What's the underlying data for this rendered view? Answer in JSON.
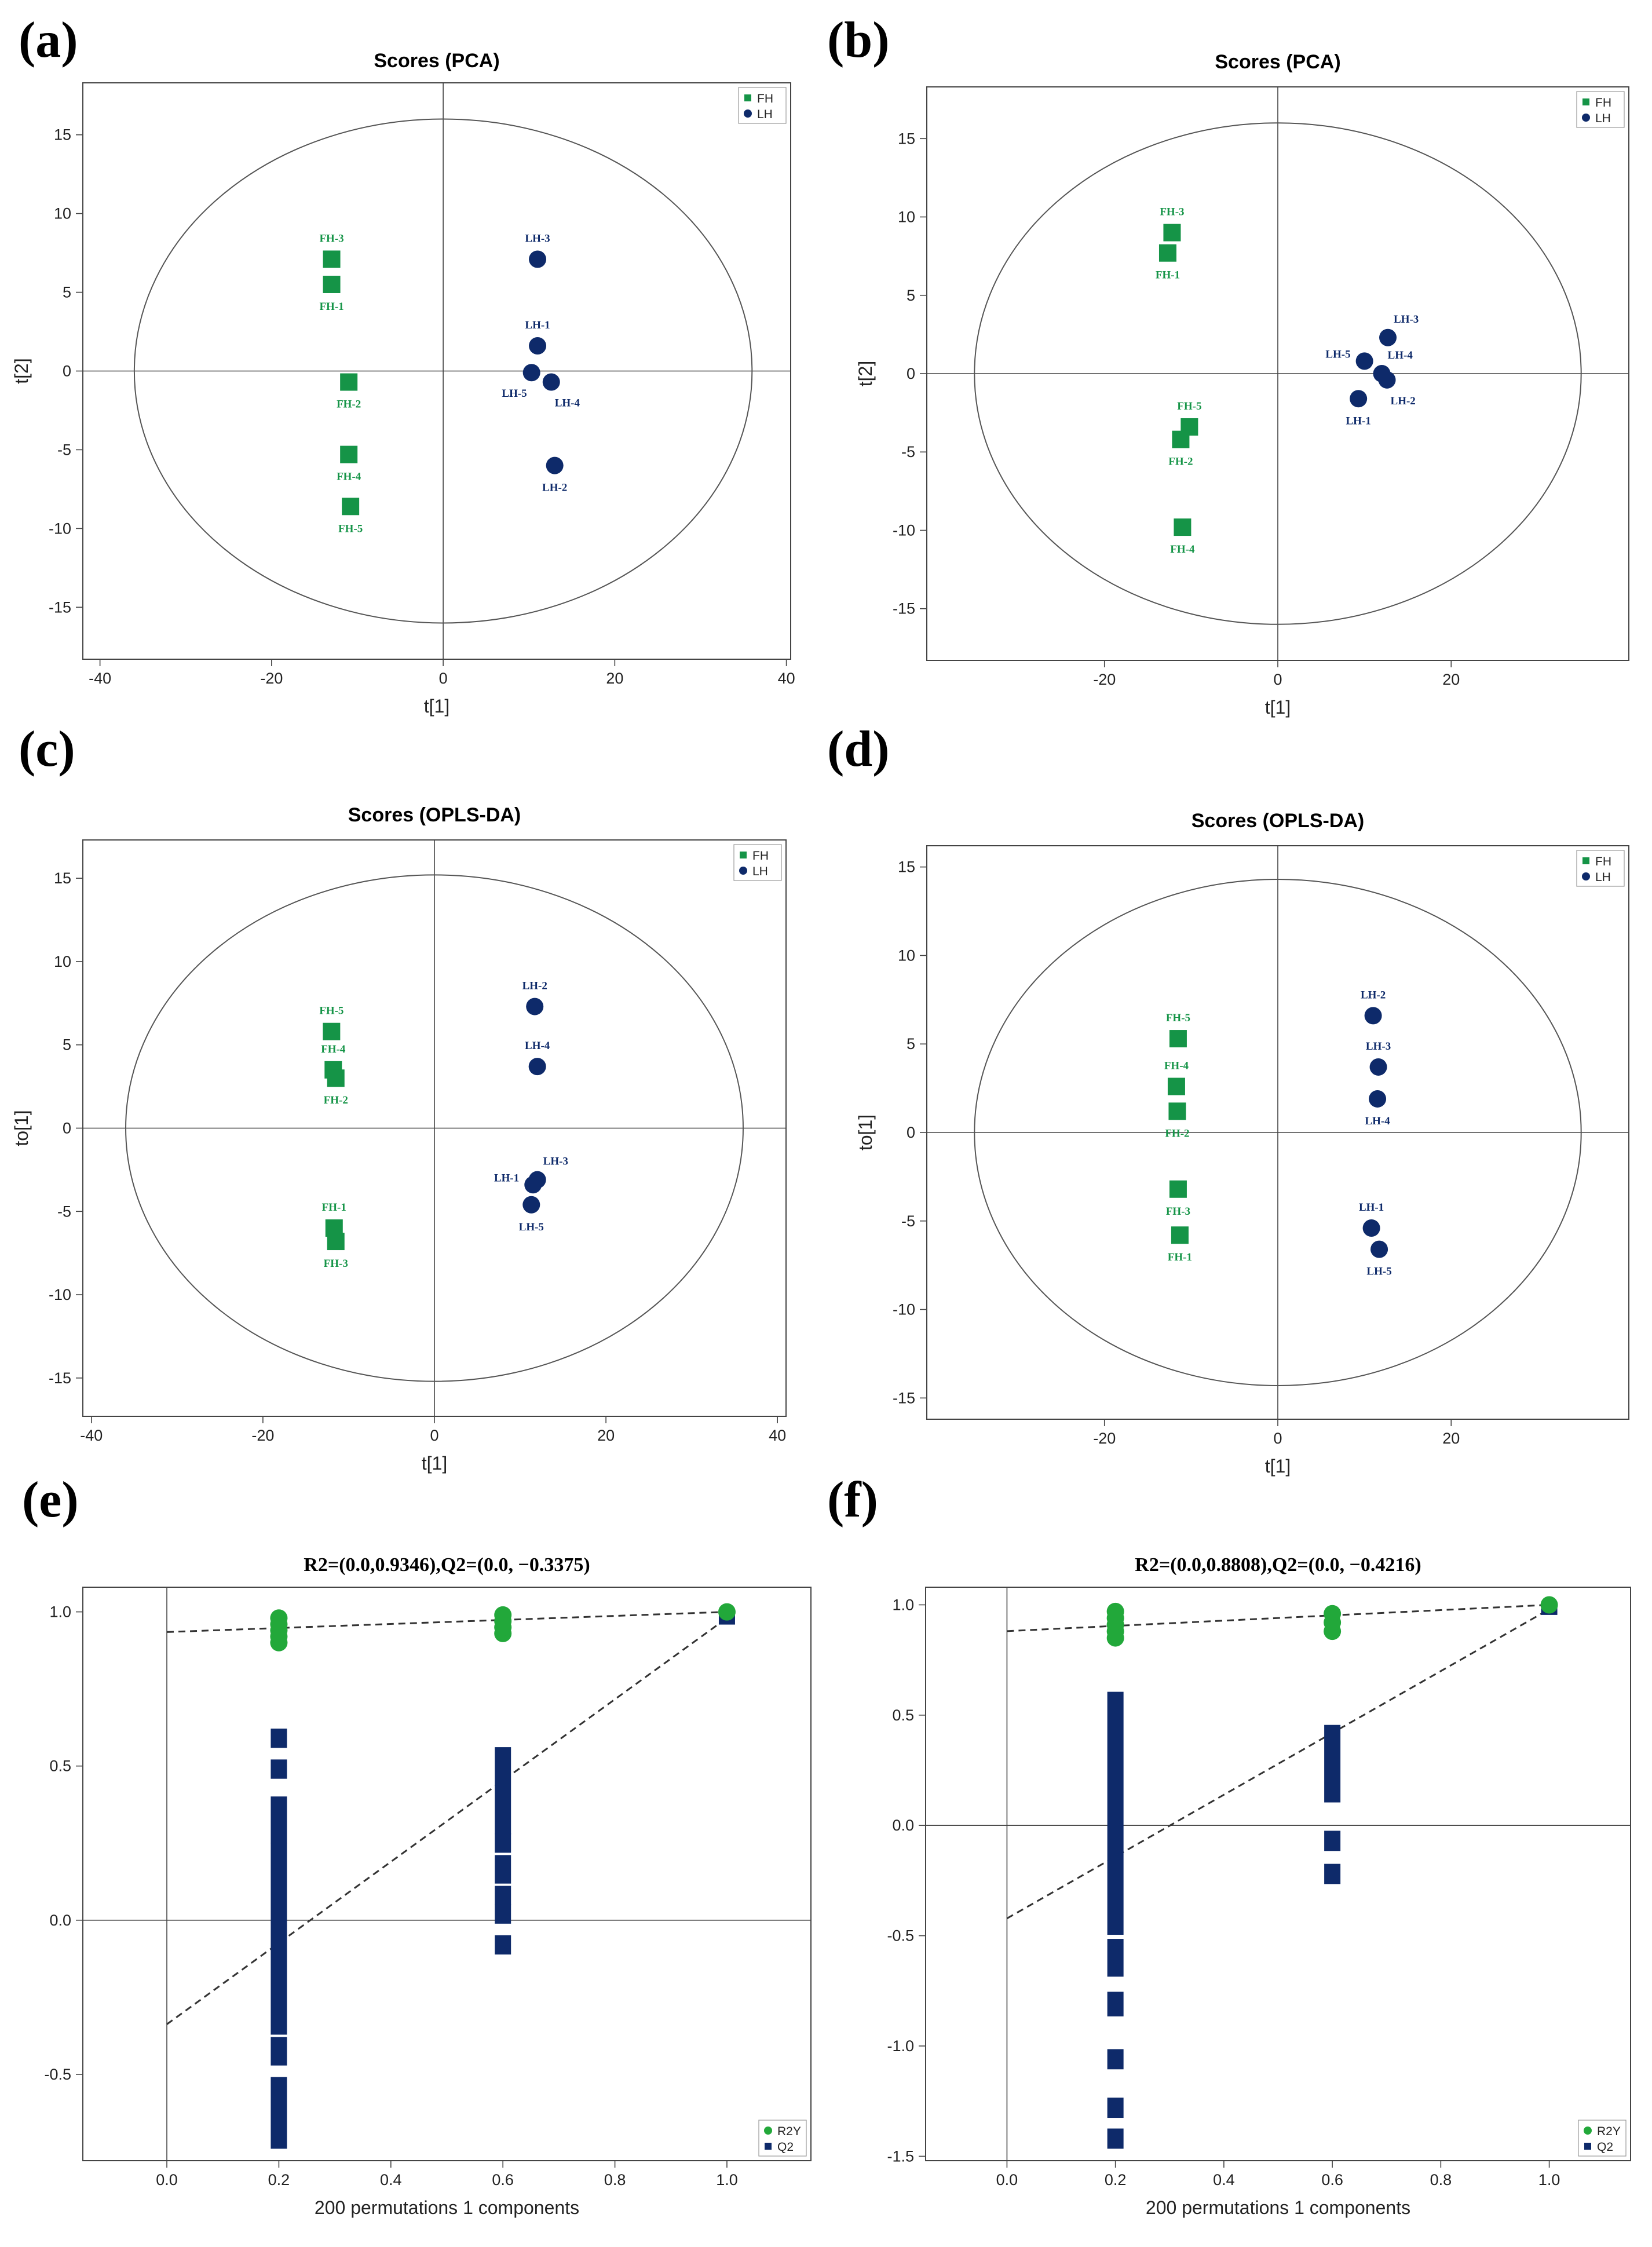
{
  "colors": {
    "FH": "#159447",
    "LH": "#0e2a6a",
    "R2Y": "#22a83a",
    "Q2": "#0e2a6a",
    "axis": "#444444"
  },
  "chart_data": [
    {
      "id": "a",
      "panel_label": "(a)",
      "type": "scatter",
      "title": "Scores (PCA)",
      "xlabel": "t[1]",
      "ylabel": "t[2]",
      "xlim": [
        -42,
        40.5
      ],
      "ylim": [
        -18.3,
        18.3
      ],
      "xticks": [
        -40,
        -20,
        0,
        20,
        40
      ],
      "yticks": [
        -15,
        -10,
        -5,
        0,
        5,
        10,
        15
      ],
      "ellipse": {
        "rx": 36,
        "ry": 16
      },
      "legend": {
        "position": "top-right",
        "entries": [
          "FH",
          "LH"
        ]
      },
      "series": [
        {
          "name": "FH",
          "marker": "square",
          "points": [
            {
              "label": "FH-3",
              "x": -13,
              "y": 7.1,
              "labelPos": "above"
            },
            {
              "label": "FH-1",
              "x": -13,
              "y": 5.5,
              "labelPos": "below"
            },
            {
              "label": "FH-2",
              "x": -11,
              "y": -0.7,
              "labelPos": "below"
            },
            {
              "label": "FH-4",
              "x": -11,
              "y": -5.3,
              "labelPos": "below"
            },
            {
              "label": "FH-5",
              "x": -10.8,
              "y": -8.6,
              "labelPos": "below"
            }
          ]
        },
        {
          "name": "LH",
          "marker": "circle",
          "points": [
            {
              "label": "LH-3",
              "x": 11,
              "y": 7.1,
              "labelPos": "above"
            },
            {
              "label": "LH-1",
              "x": 11,
              "y": 1.6,
              "labelPos": "above"
            },
            {
              "label": "LH-5",
              "x": 10.3,
              "y": -0.1,
              "labelPos": "below-left"
            },
            {
              "label": "LH-4",
              "x": 12.6,
              "y": -0.7,
              "labelPos": "below-right"
            },
            {
              "label": "LH-2",
              "x": 13,
              "y": -6,
              "labelPos": "below"
            }
          ]
        }
      ]
    },
    {
      "id": "b",
      "panel_label": "(b)",
      "type": "scatter",
      "title": "Scores (PCA)",
      "xlabel": "t[1]",
      "ylabel": "t[2]",
      "xlim": [
        -40.5,
        40.5
      ],
      "ylim": [
        -18.3,
        18.3
      ],
      "xticks": [
        -20,
        0,
        20
      ],
      "yticks": [
        -15,
        -10,
        -5,
        0,
        5,
        10,
        15
      ],
      "ellipse": {
        "rx": 35,
        "ry": 16
      },
      "legend": {
        "position": "top-right",
        "entries": [
          "FH",
          "LH"
        ]
      },
      "series": [
        {
          "name": "FH",
          "marker": "square",
          "points": [
            {
              "label": "FH-3",
              "x": -12.2,
              "y": 9,
              "labelPos": "above"
            },
            {
              "label": "FH-1",
              "x": -12.7,
              "y": 7.7,
              "labelPos": "below"
            },
            {
              "label": "FH-5",
              "x": -10.2,
              "y": -3.4,
              "labelPos": "above"
            },
            {
              "label": "FH-2",
              "x": -11.2,
              "y": -4.2,
              "labelPos": "below"
            },
            {
              "label": "FH-4",
              "x": -11,
              "y": -9.8,
              "labelPos": "below"
            }
          ]
        },
        {
          "name": "LH",
          "marker": "circle",
          "points": [
            {
              "label": "LH-3",
              "x": 12.7,
              "y": 2.3,
              "labelPos": "above-right"
            },
            {
              "label": "LH-5",
              "x": 10,
              "y": 0.8,
              "labelPos": "left"
            },
            {
              "label": "LH-4",
              "x": 12,
              "y": 0,
              "labelPos": "above-right"
            },
            {
              "label": "LH-2",
              "x": 12.6,
              "y": -0.4,
              "labelPos": "below-right"
            },
            {
              "label": "LH-1",
              "x": 9.3,
              "y": -1.6,
              "labelPos": "below"
            }
          ]
        }
      ]
    },
    {
      "id": "c",
      "panel_label": "(c)",
      "type": "scatter",
      "title": "Scores (OPLS-DA)",
      "xlabel": "t[1]",
      "ylabel": "to[1]",
      "xlim": [
        -41,
        41
      ],
      "ylim": [
        -17.3,
        17.3
      ],
      "xticks": [
        -40,
        -20,
        0,
        20,
        40
      ],
      "yticks": [
        -15,
        -10,
        -5,
        0,
        5,
        10,
        15
      ],
      "ellipse": {
        "rx": 36,
        "ry": 15.2
      },
      "legend": {
        "position": "top-right",
        "entries": [
          "FH",
          "LH"
        ]
      },
      "series": [
        {
          "name": "FH",
          "marker": "square",
          "points": [
            {
              "label": "FH-5",
              "x": -12,
              "y": 5.8,
              "labelPos": "above"
            },
            {
              "label": "FH-4",
              "x": -11.8,
              "y": 3.5,
              "labelPos": "above"
            },
            {
              "label": "FH-2",
              "x": -11.5,
              "y": 3,
              "labelPos": "below"
            },
            {
              "label": "FH-1",
              "x": -11.7,
              "y": -6,
              "labelPos": "above"
            },
            {
              "label": "FH-3",
              "x": -11.5,
              "y": -6.8,
              "labelPos": "below"
            }
          ]
        },
        {
          "name": "LH",
          "marker": "circle",
          "points": [
            {
              "label": "LH-2",
              "x": 11.7,
              "y": 7.3,
              "labelPos": "above"
            },
            {
              "label": "LH-4",
              "x": 12,
              "y": 3.7,
              "labelPos": "above"
            },
            {
              "label": "LH-3",
              "x": 12,
              "y": -3.1,
              "labelPos": "above-right"
            },
            {
              "label": "LH-1",
              "x": 11.5,
              "y": -3.4,
              "labelPos": "left"
            },
            {
              "label": "LH-5",
              "x": 11.3,
              "y": -4.6,
              "labelPos": "below"
            }
          ]
        }
      ]
    },
    {
      "id": "d",
      "panel_label": "(d)",
      "type": "scatter",
      "title": "Scores (OPLS-DA)",
      "xlabel": "t[1]",
      "ylabel": "to[1]",
      "xlim": [
        -40.5,
        40.5
      ],
      "ylim": [
        -16.2,
        16.2
      ],
      "xticks": [
        -20,
        0,
        20
      ],
      "yticks": [
        -15,
        -10,
        -5,
        0,
        5,
        10,
        15
      ],
      "ellipse": {
        "rx": 35,
        "ry": 14.3
      },
      "legend": {
        "position": "top-right",
        "entries": [
          "FH",
          "LH"
        ]
      },
      "series": [
        {
          "name": "FH",
          "marker": "square",
          "points": [
            {
              "label": "FH-5",
              "x": -11.5,
              "y": 5.3,
              "labelPos": "above"
            },
            {
              "label": "FH-4",
              "x": -11.7,
              "y": 2.6,
              "labelPos": "above"
            },
            {
              "label": "FH-2",
              "x": -11.6,
              "y": 1.2,
              "labelPos": "below"
            },
            {
              "label": "FH-3",
              "x": -11.5,
              "y": -3.2,
              "labelPos": "below"
            },
            {
              "label": "FH-1",
              "x": -11.3,
              "y": -5.8,
              "labelPos": "below"
            }
          ]
        },
        {
          "name": "LH",
          "marker": "circle",
          "points": [
            {
              "label": "LH-2",
              "x": 11,
              "y": 6.6,
              "labelPos": "above"
            },
            {
              "label": "LH-3",
              "x": 11.6,
              "y": 3.7,
              "labelPos": "above"
            },
            {
              "label": "LH-4",
              "x": 11.5,
              "y": 1.9,
              "labelPos": "below"
            },
            {
              "label": "LH-1",
              "x": 10.8,
              "y": -5.4,
              "labelPos": "above"
            },
            {
              "label": "LH-5",
              "x": 11.7,
              "y": -6.6,
              "labelPos": "below"
            }
          ]
        }
      ]
    },
    {
      "id": "e",
      "panel_label": "(e)",
      "type": "permutation",
      "title": "R2=(0.0,0.9346),Q2=(0.0, −0.3375)",
      "xlabel": "200 permutations 1 components",
      "ylabel": "",
      "xlim": [
        -0.15,
        1.15
      ],
      "ylim": [
        -0.78,
        1.08
      ],
      "xticks": [
        0.0,
        0.2,
        0.4,
        0.6,
        0.8,
        1.0
      ],
      "xtick_labels": [
        "0.0",
        "0.2",
        "0.4",
        "0.6",
        "0.8",
        "1.0"
      ],
      "yticks": [
        -0.5,
        0.0,
        0.5,
        1.0
      ],
      "ytick_labels": [
        "-0.5",
        "0.0",
        "0.5",
        "1.0"
      ],
      "legend": {
        "position": "bottom-right",
        "entries": [
          "R2Y",
          "Q2"
        ]
      },
      "r2y_line": [
        [
          0,
          0.9346
        ],
        [
          1,
          1.0
        ]
      ],
      "q2_line": [
        [
          0,
          -0.3375
        ],
        [
          1,
          0.98
        ]
      ],
      "r2y_points": [
        {
          "x": 0.2,
          "y": 0.9
        },
        {
          "x": 0.2,
          "y": 0.92
        },
        {
          "x": 0.2,
          "y": 0.94
        },
        {
          "x": 0.2,
          "y": 0.96
        },
        {
          "x": 0.2,
          "y": 0.98
        },
        {
          "x": 0.6,
          "y": 0.93
        },
        {
          "x": 0.6,
          "y": 0.95
        },
        {
          "x": 0.6,
          "y": 0.97
        },
        {
          "x": 0.6,
          "y": 0.99
        },
        {
          "x": 1.0,
          "y": 1.0
        }
      ],
      "q2_segments": [
        {
          "x": 0.2,
          "from": -0.73,
          "to": -0.52
        },
        {
          "x": 0.2,
          "from": -0.46,
          "to": -0.39
        },
        {
          "x": 0.2,
          "from": -0.36,
          "to": 0.24
        },
        {
          "x": 0.2,
          "from": 0.26,
          "to": 0.39
        },
        {
          "x": 0.2,
          "from": 0.47,
          "to": 0.51
        },
        {
          "x": 0.2,
          "from": 0.57,
          "to": 0.61
        },
        {
          "x": 0.6,
          "from": -0.1,
          "to": -0.06
        },
        {
          "x": 0.6,
          "from": 0.0,
          "to": 0.04
        },
        {
          "x": 0.6,
          "from": 0.06,
          "to": 0.1
        },
        {
          "x": 0.6,
          "from": 0.13,
          "to": 0.2
        },
        {
          "x": 0.6,
          "from": 0.23,
          "to": 0.27
        },
        {
          "x": 0.6,
          "from": 0.29,
          "to": 0.55
        },
        {
          "x": 1.0,
          "from": 0.97,
          "to": 0.99
        }
      ]
    },
    {
      "id": "f",
      "panel_label": "(f)",
      "type": "permutation",
      "title": "R2=(0.0,0.8808),Q2=(0.0, −0.4216)",
      "xlabel": "200 permutations 1 components",
      "ylabel": "",
      "xlim": [
        -0.15,
        1.15
      ],
      "ylim": [
        -1.52,
        1.08
      ],
      "xticks": [
        0.0,
        0.2,
        0.4,
        0.6,
        0.8,
        1.0
      ],
      "xtick_labels": [
        "0.0",
        "0.2",
        "0.4",
        "0.6",
        "0.8",
        "1.0"
      ],
      "yticks": [
        -1.5,
        -1.0,
        -0.5,
        0.0,
        0.5,
        1.0
      ],
      "ytick_labels": [
        "-1.5",
        "-1.0",
        "-0.5",
        "0.0",
        "0.5",
        "1.0"
      ],
      "legend": {
        "position": "bottom-right",
        "entries": [
          "R2Y",
          "Q2"
        ]
      },
      "r2y_line": [
        [
          0,
          0.8808
        ],
        [
          1,
          1.0
        ]
      ],
      "q2_line": [
        [
          0,
          -0.4216
        ],
        [
          1,
          0.98
        ]
      ],
      "r2y_points": [
        {
          "x": 0.2,
          "y": 0.85
        },
        {
          "x": 0.2,
          "y": 0.88
        },
        {
          "x": 0.2,
          "y": 0.91
        },
        {
          "x": 0.2,
          "y": 0.94
        },
        {
          "x": 0.2,
          "y": 0.97
        },
        {
          "x": 0.6,
          "y": 0.88
        },
        {
          "x": 0.6,
          "y": 0.92
        },
        {
          "x": 0.6,
          "y": 0.96
        },
        {
          "x": 1.0,
          "y": 1.0
        }
      ],
      "q2_segments": [
        {
          "x": 0.2,
          "from": -1.45,
          "to": -1.39
        },
        {
          "x": 0.2,
          "from": -1.31,
          "to": -1.25
        },
        {
          "x": 0.2,
          "from": -1.09,
          "to": -1.03
        },
        {
          "x": 0.2,
          "from": -0.85,
          "to": -0.77
        },
        {
          "x": 0.2,
          "from": -0.67,
          "to": -0.53
        },
        {
          "x": 0.2,
          "from": -0.48,
          "to": 0.59
        },
        {
          "x": 0.6,
          "from": -0.25,
          "to": -0.19
        },
        {
          "x": 0.6,
          "from": -0.1,
          "to": -0.04
        },
        {
          "x": 0.6,
          "from": 0.12,
          "to": 0.44
        },
        {
          "x": 1.0,
          "from": 0.97,
          "to": 0.99
        }
      ]
    }
  ]
}
